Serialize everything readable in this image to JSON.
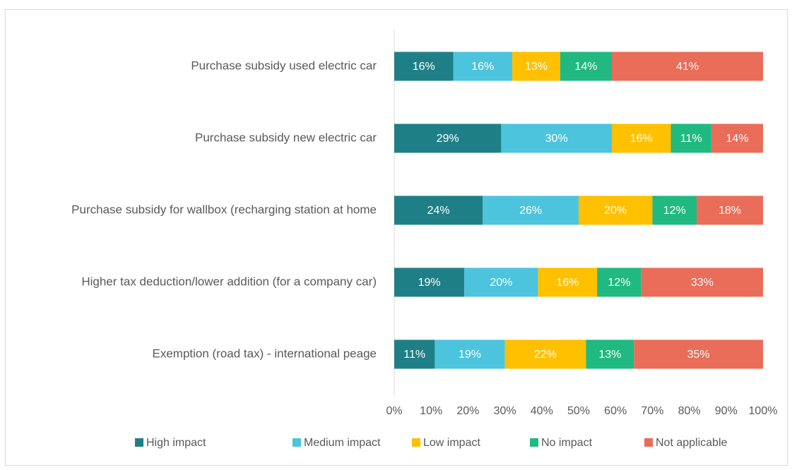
{
  "chart_data": {
    "type": "stacked-bar-horizontal",
    "categories": [
      "Purchase subsidy used electric car",
      "Purchase subsidy new electric car",
      "Purchase subsidy for wallbox (recharging station at home",
      "Higher tax deduction/lower addition (for a company car)",
      "Exemption (road tax) - international peage"
    ],
    "series": [
      {
        "name": "High impact",
        "color": "#1f7f87",
        "values": [
          16,
          29,
          24,
          19,
          11
        ],
        "value_labels": [
          "16%",
          "29%",
          "24%",
          "19%",
          "11%"
        ]
      },
      {
        "name": "Medium impact",
        "color": "#4cc4dd",
        "values": [
          16,
          30,
          26,
          20,
          19
        ],
        "value_labels": [
          "16%",
          "30%",
          "26%",
          "20%",
          "19%"
        ]
      },
      {
        "name": "Low impact",
        "color": "#ffc000",
        "values": [
          13,
          16,
          20,
          16,
          22
        ],
        "value_labels": [
          "13%",
          "16%",
          "20%",
          "16%",
          "22%"
        ]
      },
      {
        "name": "No impact",
        "color": "#20b982",
        "values": [
          14,
          11,
          12,
          12,
          13
        ],
        "value_labels": [
          "14%",
          "11%",
          "12%",
          "12%",
          "13%"
        ]
      },
      {
        "name": "Not applicable",
        "color": "#e96d59",
        "values": [
          41,
          14,
          18,
          33,
          35
        ],
        "value_labels": [
          "41%",
          "14%",
          "18%",
          "33%",
          "35%"
        ]
      }
    ],
    "xlim": [
      0,
      100
    ],
    "xticks": [
      {
        "value": 0,
        "label": "0%"
      },
      {
        "value": 10,
        "label": "10%"
      },
      {
        "value": 20,
        "label": "20%"
      },
      {
        "value": 30,
        "label": "30%"
      },
      {
        "value": 40,
        "label": "40%"
      },
      {
        "value": 50,
        "label": "50%"
      },
      {
        "value": 60,
        "label": "60%"
      },
      {
        "value": 70,
        "label": "70%"
      },
      {
        "value": 80,
        "label": "80%"
      },
      {
        "value": 90,
        "label": "90%"
      },
      {
        "value": 100,
        "label": "100%"
      }
    ],
    "legend": "bottom"
  }
}
